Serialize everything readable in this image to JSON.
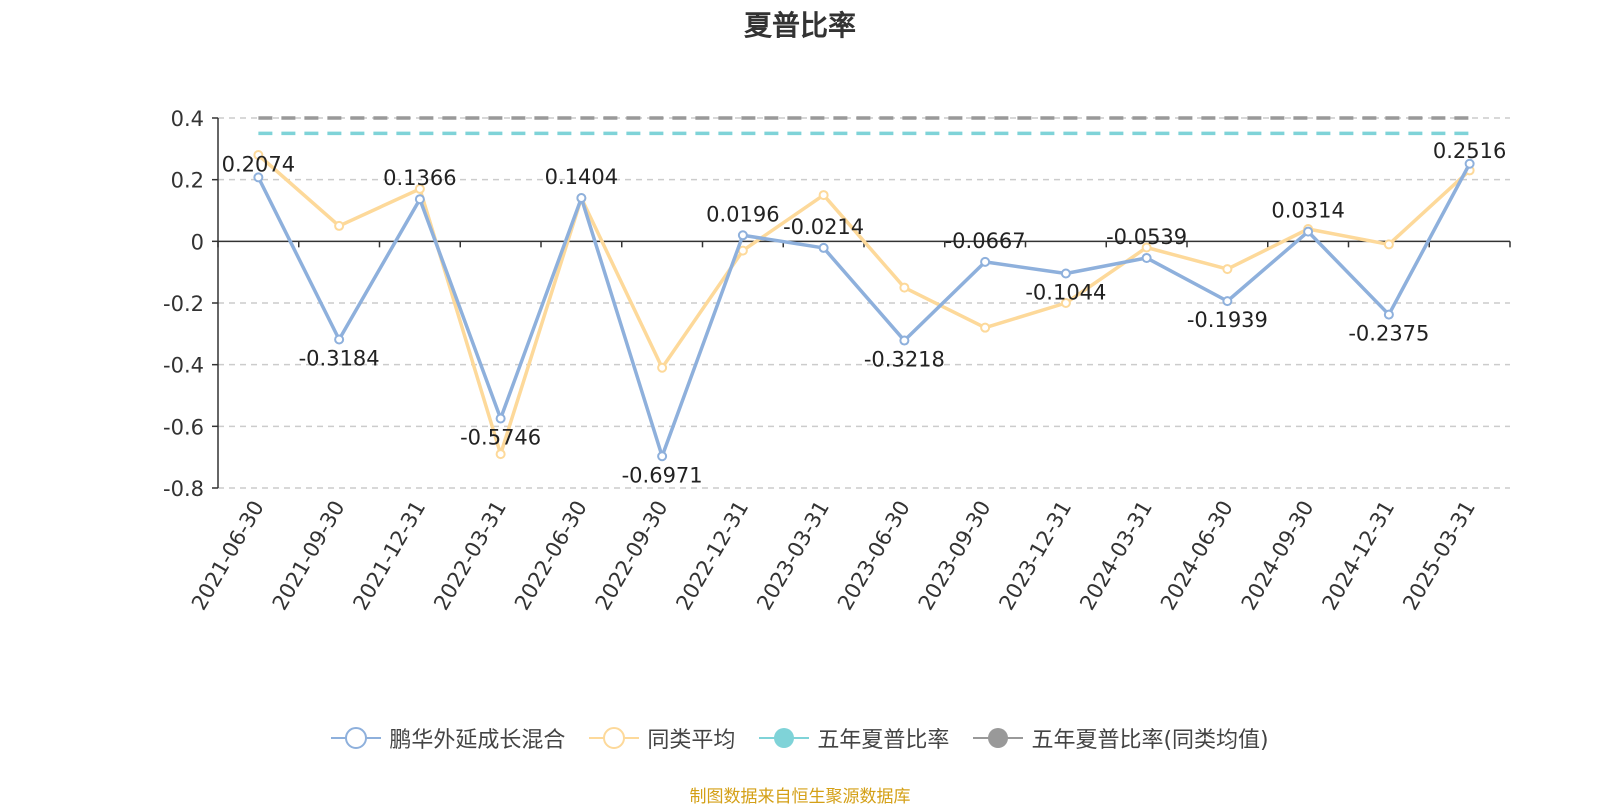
{
  "chart_data": {
    "type": "line",
    "title": "夏普比率",
    "categories": [
      "2021-06-30",
      "2021-09-30",
      "2021-12-31",
      "2022-03-31",
      "2022-06-30",
      "2022-09-30",
      "2022-12-31",
      "2023-03-31",
      "2023-06-30",
      "2023-09-30",
      "2023-12-31",
      "2024-03-31",
      "2024-06-30",
      "2024-09-30",
      "2024-12-31",
      "2025-03-31"
    ],
    "yticks": [
      "0.4",
      "0.2",
      "0",
      "-0.2",
      "-0.4",
      "-0.6",
      "-0.8"
    ],
    "ylim": [
      -0.8,
      0.4
    ],
    "grid": true,
    "legend_position": "bottom",
    "series": [
      {
        "name": "鹏华外延成长混合",
        "color": "#8eb0dc",
        "values": [
          0.2074,
          -0.3184,
          0.1366,
          -0.5746,
          0.1404,
          -0.6971,
          0.0196,
          -0.0214,
          -0.3218,
          -0.0667,
          -0.1044,
          -0.0539,
          -0.1939,
          0.0314,
          -0.2375,
          0.2516
        ],
        "labels": [
          "0.2074",
          "-0.3184",
          "0.1366",
          "-0.5746",
          "0.1404",
          "-0.6971",
          "0.0196",
          "-0.0214",
          "-0.3218",
          "-0.0667",
          "-0.1044",
          "-0.0539",
          "-0.1939",
          "0.0314",
          "-0.2375",
          "0.2516"
        ]
      },
      {
        "name": "同类平均",
        "color": "#fdd99a",
        "values": [
          0.28,
          0.05,
          0.17,
          -0.69,
          0.14,
          -0.41,
          -0.03,
          0.15,
          -0.15,
          -0.28,
          -0.2,
          -0.02,
          -0.09,
          0.04,
          -0.01,
          0.23
        ]
      },
      {
        "name": "五年夏普比率",
        "color": "#7fd3d8",
        "value": 0.35
      },
      {
        "name": "五年夏普比率(同类均值)",
        "color": "#999999",
        "value": 0.4
      }
    ]
  },
  "source_note": "制图数据来自恒生聚源数据库"
}
